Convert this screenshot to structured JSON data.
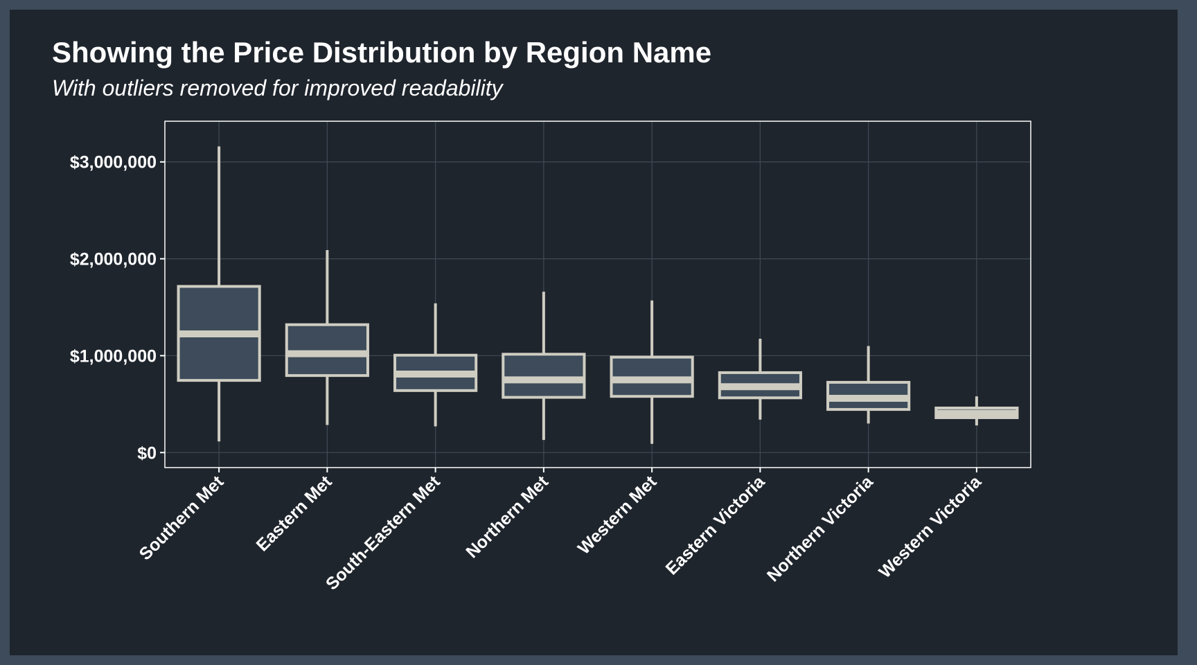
{
  "colors": {
    "page_border": "#3d4b5a",
    "background": "#1f252d",
    "box_fill": "#3d4b5a",
    "box_stroke": "#cfcdc2",
    "grid": "#414a54",
    "text": "#ffffff"
  },
  "chart_data": {
    "type": "box",
    "title": "Showing the Price Distribution by Region Name",
    "subtitle": "With outliers removed for improved readability",
    "xlabel": "",
    "ylabel": "",
    "ylim": [
      -155000,
      3420000
    ],
    "yticks": [
      0,
      1000000,
      2000000,
      3000000
    ],
    "ytick_labels": [
      "$0",
      "$1,000,000",
      "$2,000,000",
      "$3,000,000"
    ],
    "grid": true,
    "legend": "none",
    "categories": [
      "Southern Met",
      "Eastern Met",
      "South-Eastern Met",
      "Northern Met",
      "Western Met",
      "Eastern Victoria",
      "Northern Victoria",
      "Western Victoria"
    ],
    "boxes": [
      {
        "min": 115000,
        "q1": 745000,
        "median": 1225000,
        "q3": 1715000,
        "max": 3160000
      },
      {
        "min": 285000,
        "q1": 795000,
        "median": 1020000,
        "q3": 1320000,
        "max": 2090000
      },
      {
        "min": 270000,
        "q1": 640000,
        "median": 810000,
        "q3": 1005000,
        "max": 1540000
      },
      {
        "min": 130000,
        "q1": 570000,
        "median": 750000,
        "q3": 1015000,
        "max": 1660000
      },
      {
        "min": 90000,
        "q1": 580000,
        "median": 750000,
        "q3": 985000,
        "max": 1570000
      },
      {
        "min": 340000,
        "q1": 565000,
        "median": 680000,
        "q3": 825000,
        "max": 1175000
      },
      {
        "min": 300000,
        "q1": 445000,
        "median": 560000,
        "q3": 725000,
        "max": 1100000
      },
      {
        "min": 280000,
        "q1": 360000,
        "median": 405000,
        "q3": 460000,
        "max": 580000
      }
    ]
  }
}
